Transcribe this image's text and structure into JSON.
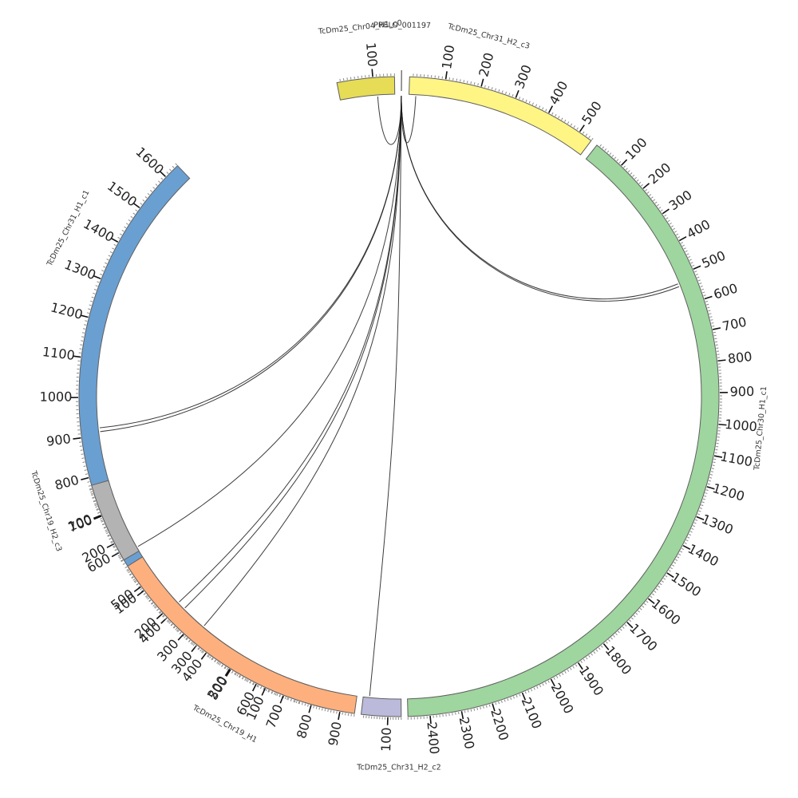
{
  "chart_data": {
    "type": "circos",
    "title": "",
    "segments": [
      {
        "name": "TcDm25_Chr31_H1_c1",
        "length": 1640,
        "color": "#6a9fd1",
        "tick_labels": [
          "100",
          "200",
          "300",
          "400",
          "500",
          "600",
          "700",
          "800",
          "900",
          "1000",
          "1100",
          "1200",
          "1300",
          "1400",
          "1500",
          "1600"
        ]
      },
      {
        "name": "TcDm25_Chr04_H1_c0",
        "length": 160,
        "color": "#e6dc56",
        "tick_labels": [
          "100"
        ]
      },
      {
        "name": "PRELO_001197",
        "length": 3,
        "color": "#b7b7b7",
        "tick_labels": []
      },
      {
        "name": "TcDm25_Chr31_H2_c3",
        "length": 540,
        "color": "#fff585",
        "tick_labels": [
          "100",
          "200",
          "300",
          "400",
          "500"
        ]
      },
      {
        "name": "TcDm25_Chr30_H1_c1",
        "length": 2470,
        "color": "#9fd59f",
        "tick_labels": [
          "100",
          "200",
          "300",
          "400",
          "500",
          "600",
          "700",
          "800",
          "900",
          "1000",
          "1100",
          "1200",
          "1300",
          "1400",
          "1500",
          "1600",
          "1700",
          "1800",
          "1900",
          "2000",
          "2100",
          "2200",
          "2300",
          "2400"
        ]
      },
      {
        "name": "TcDm25_Chr31_H2_c2",
        "length": 150,
        "color": "#bcbadb",
        "tick_labels": [
          "100"
        ]
      },
      {
        "name": "TcDm25_Chr19_H1",
        "length": 950,
        "color": "#fdb07e",
        "tick_labels": [
          "100",
          "200",
          "300",
          "400",
          "500",
          "600",
          "700",
          "800",
          "900"
        ]
      },
      {
        "name": "TcDm25_Chr19_H2_c3",
        "length": 260,
        "color": "#b3b3b3",
        "tick_labels": [
          "100",
          "200"
        ]
      }
    ],
    "links": [
      {
        "from": "PRELO_001197",
        "from_pos": 1.5,
        "to": "TcDm25_Chr31_H1_c1",
        "to_pos": 910
      },
      {
        "from": "PRELO_001197",
        "from_pos": 1.5,
        "to": "TcDm25_Chr31_H1_c1",
        "to_pos": 920
      },
      {
        "from": "PRELO_001197",
        "from_pos": 1.5,
        "to": "TcDm25_Chr04_H1_c0",
        "to_pos": 110
      },
      {
        "from": "PRELO_001197",
        "from_pos": 1.5,
        "to": "TcDm25_Chr31_H2_c3",
        "to_pos": 20
      },
      {
        "from": "PRELO_001197",
        "from_pos": 1.5,
        "to": "TcDm25_Chr30_H1_c1",
        "to_pos": 525
      },
      {
        "from": "PRELO_001197",
        "from_pos": 1.5,
        "to": "TcDm25_Chr30_H1_c1",
        "to_pos": 535
      },
      {
        "from": "PRELO_001197",
        "from_pos": 1.5,
        "to": "TcDm25_Chr31_H2_c2",
        "to_pos": 25
      },
      {
        "from": "PRELO_001197",
        "from_pos": 1.5,
        "to": "TcDm25_Chr19_H1",
        "to_pos": 210
      },
      {
        "from": "PRELO_001197",
        "from_pos": 1.5,
        "to": "TcDm25_Chr19_H1",
        "to_pos": 240
      },
      {
        "from": "PRELO_001197",
        "from_pos": 1.5,
        "to": "TcDm25_Chr19_H1",
        "to_pos": 335
      },
      {
        "from": "PRELO_001197",
        "from_pos": 1.5,
        "to": "TcDm25_Chr19_H2_c3",
        "to_pos": 245
      }
    ],
    "link_color": "#1a1a1a"
  }
}
